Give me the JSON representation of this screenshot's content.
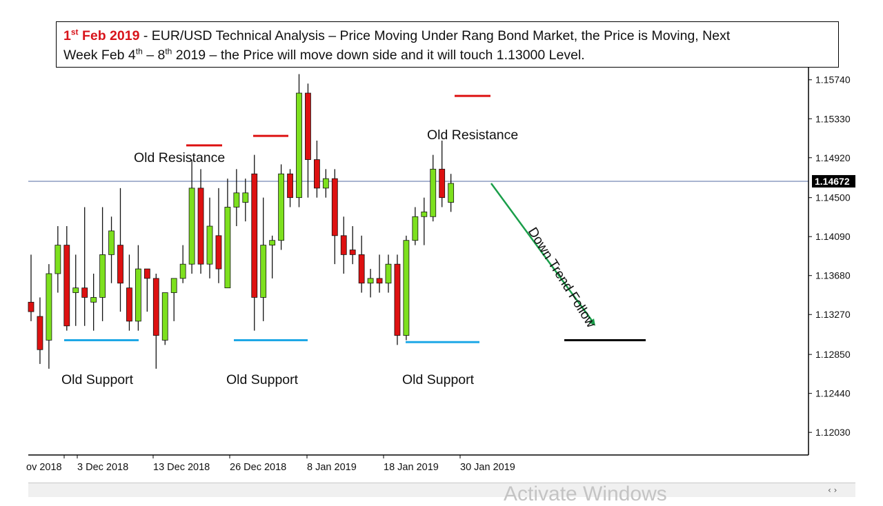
{
  "headline": {
    "date_main": "1",
    "date_sup": "st",
    "date_rest": " Feb 2019",
    "line1": " - EUR/USD Technical Analysis – Price Moving Under Rang Bond Market, the Price is Moving, Next",
    "line2_a": "Week  Feb 4",
    "sup1": "th",
    "line2_b": " – 8",
    "sup2": "th",
    "line2_c": " 2019 – the Price will move down side and it will touch 1.13000 Level."
  },
  "chart_data": {
    "type": "candlestick",
    "symbol": "EUR/USD",
    "ylim": [
      1.1185,
      1.1605
    ],
    "yticks": [
      "1.15740",
      "1.15330",
      "1.14920",
      "1.14500",
      "1.14090",
      "1.13680",
      "1.13270",
      "1.12850",
      "1.12440",
      "1.12030"
    ],
    "current_price": "1.14672",
    "xticks": [
      "ov 2018",
      "3 Dec 2018",
      "13 Dec 2018",
      "26 Dec 2018",
      "8 Jan 2019",
      "18 Jan 2019",
      "30 Jan 2019"
    ],
    "candles": [
      {
        "o": 1.134,
        "h": 1.139,
        "l": 1.132,
        "c": 1.133
      },
      {
        "o": 1.1325,
        "h": 1.1345,
        "l": 1.1275,
        "c": 1.129
      },
      {
        "o": 1.13,
        "h": 1.138,
        "l": 1.127,
        "c": 1.137
      },
      {
        "o": 1.137,
        "h": 1.142,
        "l": 1.135,
        "c": 1.14
      },
      {
        "o": 1.14,
        "h": 1.142,
        "l": 1.131,
        "c": 1.1315
      },
      {
        "o": 1.135,
        "h": 1.139,
        "l": 1.1315,
        "c": 1.1355
      },
      {
        "o": 1.1355,
        "h": 1.144,
        "l": 1.1315,
        "c": 1.1345
      },
      {
        "o": 1.134,
        "h": 1.137,
        "l": 1.131,
        "c": 1.1345
      },
      {
        "o": 1.1345,
        "h": 1.144,
        "l": 1.132,
        "c": 1.139
      },
      {
        "o": 1.139,
        "h": 1.143,
        "l": 1.136,
        "c": 1.1415
      },
      {
        "o": 1.14,
        "h": 1.146,
        "l": 1.133,
        "c": 1.136
      },
      {
        "o": 1.1355,
        "h": 1.139,
        "l": 1.131,
        "c": 1.132
      },
      {
        "o": 1.132,
        "h": 1.14,
        "l": 1.131,
        "c": 1.1375
      },
      {
        "o": 1.1375,
        "h": 1.1375,
        "l": 1.133,
        "c": 1.1365
      },
      {
        "o": 1.1365,
        "h": 1.137,
        "l": 1.127,
        "c": 1.1305
      },
      {
        "o": 1.13,
        "h": 1.135,
        "l": 1.1295,
        "c": 1.135
      },
      {
        "o": 1.135,
        "h": 1.1365,
        "l": 1.132,
        "c": 1.1365
      },
      {
        "o": 1.1365,
        "h": 1.14,
        "l": 1.136,
        "c": 1.138
      },
      {
        "o": 1.138,
        "h": 1.149,
        "l": 1.137,
        "c": 1.146
      },
      {
        "o": 1.146,
        "h": 1.148,
        "l": 1.137,
        "c": 1.138
      },
      {
        "o": 1.138,
        "h": 1.145,
        "l": 1.1365,
        "c": 1.142
      },
      {
        "o": 1.141,
        "h": 1.146,
        "l": 1.136,
        "c": 1.1375
      },
      {
        "o": 1.1355,
        "h": 1.147,
        "l": 1.1355,
        "c": 1.144
      },
      {
        "o": 1.144,
        "h": 1.148,
        "l": 1.142,
        "c": 1.1455
      },
      {
        "o": 1.1445,
        "h": 1.147,
        "l": 1.1425,
        "c": 1.1455
      },
      {
        "o": 1.1475,
        "h": 1.1495,
        "l": 1.131,
        "c": 1.1345
      },
      {
        "o": 1.1345,
        "h": 1.145,
        "l": 1.132,
        "c": 1.14
      },
      {
        "o": 1.14,
        "h": 1.141,
        "l": 1.1365,
        "c": 1.1405
      },
      {
        "o": 1.1405,
        "h": 1.1485,
        "l": 1.1395,
        "c": 1.1475
      },
      {
        "o": 1.1475,
        "h": 1.148,
        "l": 1.144,
        "c": 1.145
      },
      {
        "o": 1.145,
        "h": 1.158,
        "l": 1.144,
        "c": 1.156
      },
      {
        "o": 1.156,
        "h": 1.157,
        "l": 1.145,
        "c": 1.149
      },
      {
        "o": 1.149,
        "h": 1.151,
        "l": 1.145,
        "c": 1.146
      },
      {
        "o": 1.146,
        "h": 1.148,
        "l": 1.145,
        "c": 1.147
      },
      {
        "o": 1.147,
        "h": 1.148,
        "l": 1.138,
        "c": 1.141
      },
      {
        "o": 1.141,
        "h": 1.143,
        "l": 1.137,
        "c": 1.139
      },
      {
        "o": 1.1395,
        "h": 1.142,
        "l": 1.138,
        "c": 1.139
      },
      {
        "o": 1.139,
        "h": 1.141,
        "l": 1.135,
        "c": 1.136
      },
      {
        "o": 1.136,
        "h": 1.1375,
        "l": 1.1345,
        "c": 1.1365
      },
      {
        "o": 1.1365,
        "h": 1.139,
        "l": 1.135,
        "c": 1.136
      },
      {
        "o": 1.136,
        "h": 1.139,
        "l": 1.135,
        "c": 1.138
      },
      {
        "o": 1.138,
        "h": 1.139,
        "l": 1.1295,
        "c": 1.1305
      },
      {
        "o": 1.1305,
        "h": 1.141,
        "l": 1.13,
        "c": 1.1405
      },
      {
        "o": 1.1405,
        "h": 1.144,
        "l": 1.14,
        "c": 1.143
      },
      {
        "o": 1.143,
        "h": 1.145,
        "l": 1.14,
        "c": 1.1435
      },
      {
        "o": 1.143,
        "h": 1.1495,
        "l": 1.1425,
        "c": 1.148
      },
      {
        "o": 1.148,
        "h": 1.151,
        "l": 1.144,
        "c": 1.145
      },
      {
        "o": 1.1445,
        "h": 1.1475,
        "l": 1.1435,
        "c": 1.1465
      }
    ],
    "annotations": {
      "old_resistance": "Old Resistance",
      "old_support": "Old Support",
      "down_trend": "Down Trend Follow"
    },
    "colors": {
      "bull": "#7de01e",
      "bear": "#dd1111",
      "wick": "#111111",
      "support": "#1ea8e6",
      "resistance": "#dd1111",
      "trend": "#1a9e4a",
      "target": "#000000",
      "price_line": "#8c9bc0",
      "axis": "#000000"
    }
  },
  "footer": {
    "watermark": "Activate Windows",
    "scroll_arrows": "‹ ›"
  }
}
